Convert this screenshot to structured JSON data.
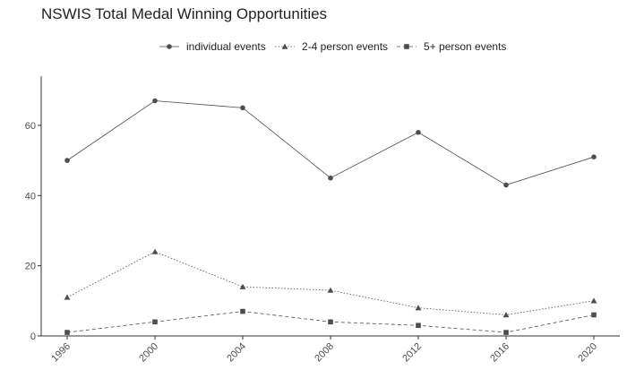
{
  "chart_data": {
    "type": "line",
    "title": "NSWIS Total Medal Winning Opportunities",
    "xlabel": "",
    "ylabel": "",
    "x": [
      1996,
      2000,
      2004,
      2008,
      2012,
      2016,
      2020
    ],
    "x_tick_labels": [
      "1996",
      "2000",
      "2004",
      "2008",
      "2012",
      "2016",
      "2020"
    ],
    "y_ticks": [
      0,
      20,
      40,
      60
    ],
    "y_tick_labels": [
      "0",
      "20",
      "40",
      "60"
    ],
    "xlim": [
      1996,
      2020
    ],
    "ylim": [
      0,
      73
    ],
    "grid": false,
    "legend_position": "top",
    "series": [
      {
        "name": "individual events",
        "values": [
          50,
          67,
          65,
          45,
          58,
          43,
          51
        ],
        "marker": "circle",
        "line_style": "solid",
        "color": "#4d4d4d"
      },
      {
        "name": "2-4 person events",
        "values": [
          11,
          24,
          14,
          13,
          8,
          6,
          10
        ],
        "marker": "triangle",
        "line_style": "dotted",
        "color": "#4d4d4d"
      },
      {
        "name": "5+ person events",
        "values": [
          1,
          4,
          7,
          4,
          3,
          1,
          6
        ],
        "marker": "square",
        "line_style": "dashed",
        "color": "#4d4d4d"
      }
    ]
  }
}
